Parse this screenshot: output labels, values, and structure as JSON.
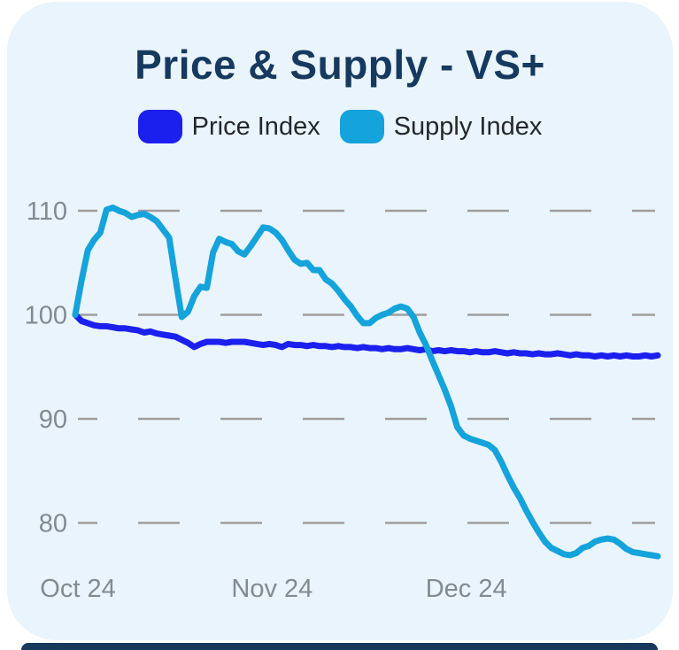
{
  "title": {
    "text": "Price & Supply - VS+",
    "color": "#16395f"
  },
  "legend": [
    {
      "label": "Price Index",
      "color": "#1b20ee"
    },
    {
      "label": "Supply Index",
      "color": "#14a3db"
    }
  ],
  "colors": {
    "page_background": "#ffffff",
    "card_background": "#eaf4fc",
    "grid": "#9e9e9e",
    "axis_labels": "#828a92",
    "next_card_peek": "#16395c"
  },
  "chart_data": {
    "type": "line",
    "title": "Price & Supply - VS+",
    "xlabel": "",
    "ylabel": "",
    "x_unit": "days from Oct 24",
    "x_tick_labels": [
      "Oct 24",
      "Nov 24",
      "Dec 24"
    ],
    "x_tick_days": [
      0,
      31,
      62
    ],
    "y_ticks": [
      110,
      100,
      90,
      80
    ],
    "ylim": [
      75,
      112
    ],
    "grid": "dashed-horizontal",
    "legend_position": "top-center",
    "series": [
      {
        "name": "Price Index",
        "color": "#1b20ee",
        "values": [
          100.0,
          99.4,
          99.2,
          99.0,
          98.9,
          98.9,
          98.8,
          98.7,
          98.7,
          98.6,
          98.5,
          98.3,
          98.4,
          98.2,
          98.1,
          98.0,
          97.9,
          97.6,
          97.3,
          96.9,
          97.2,
          97.4,
          97.4,
          97.4,
          97.3,
          97.4,
          97.4,
          97.4,
          97.3,
          97.2,
          97.1,
          97.2,
          97.1,
          96.9,
          97.2,
          97.1,
          97.1,
          97.0,
          97.1,
          97.0,
          97.0,
          96.9,
          97.0,
          96.9,
          96.9,
          96.8,
          96.9,
          96.8,
          96.8,
          96.7,
          96.8,
          96.7,
          96.7,
          96.8,
          96.7,
          96.6,
          96.7,
          96.5,
          96.6,
          96.5,
          96.6,
          96.5,
          96.5,
          96.4,
          96.5,
          96.4,
          96.4,
          96.5,
          96.4,
          96.3,
          96.4,
          96.3,
          96.3,
          96.2,
          96.3,
          96.2,
          96.2,
          96.3,
          96.2,
          96.1,
          96.2,
          96.1,
          96.1,
          96.0,
          96.1,
          96.0,
          96.1,
          96.0,
          96.1,
          96.0,
          96.0,
          96.1,
          96.0,
          96.1
        ]
      },
      {
        "name": "Supply Index",
        "color": "#14a3db",
        "values": [
          100.0,
          103.3,
          106.2,
          107.2,
          107.9,
          110.1,
          110.3,
          110.0,
          109.8,
          109.4,
          109.6,
          109.7,
          109.4,
          109.0,
          108.2,
          107.4,
          103.5,
          99.8,
          100.3,
          101.8,
          102.7,
          102.6,
          106.0,
          107.3,
          107.0,
          106.8,
          106.1,
          105.8,
          106.6,
          107.5,
          108.4,
          108.3,
          107.9,
          107.2,
          106.2,
          105.3,
          104.9,
          105.0,
          104.3,
          104.3,
          103.4,
          103.0,
          102.3,
          101.5,
          100.8,
          99.9,
          99.2,
          99.2,
          99.7,
          100.0,
          100.2,
          100.6,
          100.8,
          100.6,
          99.8,
          98.3,
          97.1,
          95.6,
          94.2,
          92.8,
          91.2,
          89.2,
          88.4,
          88.1,
          87.9,
          87.7,
          87.5,
          87.0,
          85.9,
          84.6,
          83.4,
          82.4,
          81.2,
          80.1,
          79.1,
          78.2,
          77.6,
          77.3,
          77.0,
          76.9,
          77.1,
          77.6,
          77.8,
          78.2,
          78.4,
          78.5,
          78.4,
          78.0,
          77.5,
          77.2,
          77.1,
          77.0,
          76.9,
          76.8
        ]
      }
    ]
  }
}
